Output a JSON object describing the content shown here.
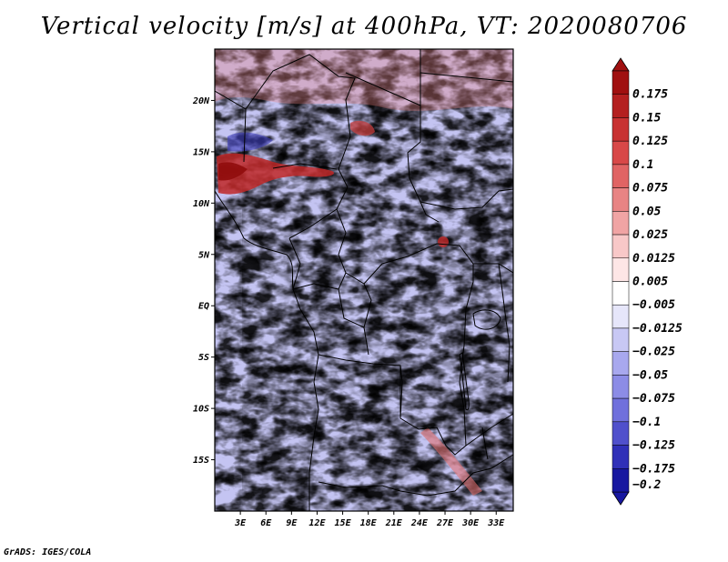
{
  "title": "Vertical velocity [m/s] at 400hPa, VT: 2020080706",
  "footer": "GrADS: IGES/COLA",
  "chart_data": {
    "type": "heatmap",
    "title": "Vertical velocity [m/s] at 400hPa, VT: 2020080706",
    "variable": "Vertical velocity",
    "units": "m/s",
    "level": "400hPa",
    "valid_time": "2020080706",
    "x_range": [
      0,
      35
    ],
    "y_range": [
      -20,
      25
    ],
    "x_ticks": [
      {
        "value": 3,
        "label": "3E"
      },
      {
        "value": 6,
        "label": "6E"
      },
      {
        "value": 9,
        "label": "9E"
      },
      {
        "value": 12,
        "label": "12E"
      },
      {
        "value": 15,
        "label": "15E"
      },
      {
        "value": 18,
        "label": "18E"
      },
      {
        "value": 21,
        "label": "21E"
      },
      {
        "value": 24,
        "label": "24E"
      },
      {
        "value": 27,
        "label": "27E"
      },
      {
        "value": 30,
        "label": "30E"
      },
      {
        "value": 33,
        "label": "33E"
      }
    ],
    "y_ticks": [
      {
        "value": 20,
        "label": "20N"
      },
      {
        "value": 15,
        "label": "15N"
      },
      {
        "value": 10,
        "label": "10N"
      },
      {
        "value": 5,
        "label": "5N"
      },
      {
        "value": 0,
        "label": "EQ"
      },
      {
        "value": -5,
        "label": "5S"
      },
      {
        "value": -10,
        "label": "10S"
      },
      {
        "value": -15,
        "label": "15S"
      }
    ],
    "colorbar": {
      "levels": [
        {
          "label": "0.175",
          "color": "#a01010"
        },
        {
          "label": "0.15",
          "color": "#b42020"
        },
        {
          "label": "0.125",
          "color": "#c83232"
        },
        {
          "label": "0.1",
          "color": "#d84848"
        },
        {
          "label": "0.075",
          "color": "#e06464"
        },
        {
          "label": "0.05",
          "color": "#e88484"
        },
        {
          "label": "0.025",
          "color": "#f0a4a4"
        },
        {
          "label": "0.0125",
          "color": "#f8c8c8"
        },
        {
          "label": "0.005",
          "color": "#fde6e6"
        },
        {
          "label": "−0.005",
          "color": "#ffffff"
        },
        {
          "label": "−0.0125",
          "color": "#e6e6fa"
        },
        {
          "label": "−0.025",
          "color": "#c8c8f4"
        },
        {
          "label": "−0.05",
          "color": "#a8a8ee"
        },
        {
          "label": "−0.075",
          "color": "#8c8ce6"
        },
        {
          "label": "−0.1",
          "color": "#7070dc"
        },
        {
          "label": "−0.125",
          "color": "#5050cc"
        },
        {
          "label": "−0.175",
          "color": "#3030b8"
        },
        {
          "label": "−0.2",
          "color": "#1818a0"
        }
      ],
      "top_color": "#a01010",
      "bottom_color": "#1818a0"
    }
  }
}
